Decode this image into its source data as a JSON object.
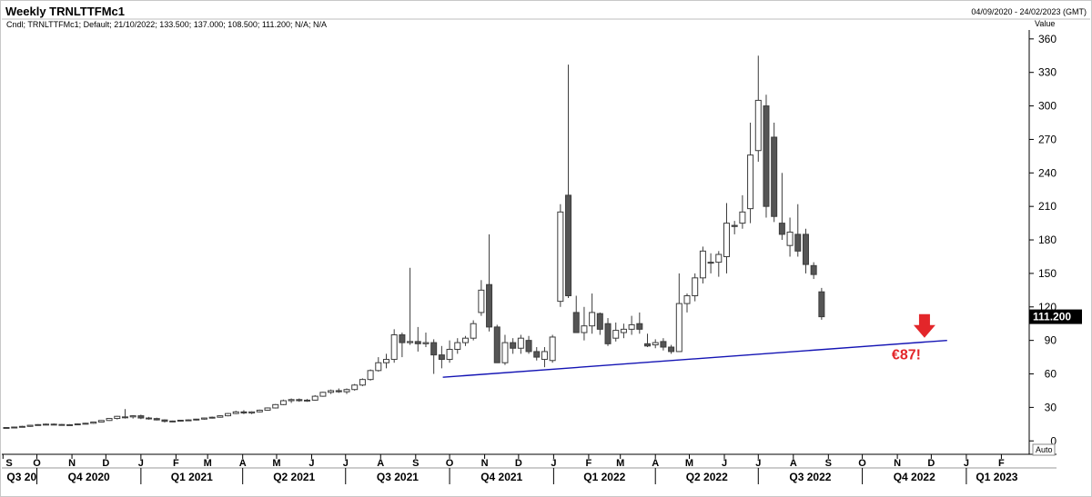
{
  "chart_data": {
    "type": "candlestick",
    "title": "Weekly TRNLTTFMc1",
    "date_range": "04/09/2020 - 24/02/2023 (GMT)",
    "info_line": "Cndl; TRNLTTFMc1; Default; 21/10/2022; 133.500; 137.000; 108.500; 111.200; N/A; N/A",
    "ylabel": "Value",
    "ylim": [
      -12,
      368
    ],
    "yticks": [
      0,
      30,
      60,
      90,
      120,
      150,
      180,
      210,
      240,
      270,
      300,
      330,
      360
    ],
    "auto_label": "Auto",
    "last_value_label": "111.200",
    "last_value": 111.2,
    "x_start": "2020-09-04",
    "x_end": "2023-02-24",
    "months": [
      {
        "label": "S",
        "date": "2020-09-01"
      },
      {
        "label": "O",
        "date": "2020-10-01"
      },
      {
        "label": "N",
        "date": "2020-11-01"
      },
      {
        "label": "D",
        "date": "2020-12-01"
      },
      {
        "label": "J",
        "date": "2021-01-01"
      },
      {
        "label": "F",
        "date": "2021-02-01"
      },
      {
        "label": "M",
        "date": "2021-03-01"
      },
      {
        "label": "A",
        "date": "2021-04-01"
      },
      {
        "label": "M",
        "date": "2021-05-01"
      },
      {
        "label": "J",
        "date": "2021-06-01"
      },
      {
        "label": "J",
        "date": "2021-07-01"
      },
      {
        "label": "A",
        "date": "2021-08-01"
      },
      {
        "label": "S",
        "date": "2021-09-01"
      },
      {
        "label": "O",
        "date": "2021-10-01"
      },
      {
        "label": "N",
        "date": "2021-11-01"
      },
      {
        "label": "D",
        "date": "2021-12-01"
      },
      {
        "label": "J",
        "date": "2022-01-01"
      },
      {
        "label": "F",
        "date": "2022-02-01"
      },
      {
        "label": "M",
        "date": "2022-03-01"
      },
      {
        "label": "A",
        "date": "2022-04-01"
      },
      {
        "label": "M",
        "date": "2022-05-01"
      },
      {
        "label": "J",
        "date": "2022-06-01"
      },
      {
        "label": "J",
        "date": "2022-07-01"
      },
      {
        "label": "A",
        "date": "2022-08-01"
      },
      {
        "label": "S",
        "date": "2022-09-01"
      },
      {
        "label": "O",
        "date": "2022-10-01"
      },
      {
        "label": "N",
        "date": "2022-11-01"
      },
      {
        "label": "D",
        "date": "2022-12-01"
      },
      {
        "label": "J",
        "date": "2023-01-01"
      },
      {
        "label": "F",
        "date": "2023-02-01"
      }
    ],
    "quarters": [
      {
        "label": "Q3 20",
        "date": "2020-09-01"
      },
      {
        "label": "Q4 2020",
        "date": "2020-10-01"
      },
      {
        "label": "Q1 2021",
        "date": "2021-01-01"
      },
      {
        "label": "Q2 2021",
        "date": "2021-04-01"
      },
      {
        "label": "Q3 2021",
        "date": "2021-07-01"
      },
      {
        "label": "Q4 2021",
        "date": "2021-10-01"
      },
      {
        "label": "Q1 2022",
        "date": "2022-01-01"
      },
      {
        "label": "Q2 2022",
        "date": "2022-04-01"
      },
      {
        "label": "Q3 2022",
        "date": "2022-07-01"
      },
      {
        "label": "Q4 2022",
        "date": "2022-10-01"
      },
      {
        "label": "Q1 2023",
        "date": "2023-01-01"
      }
    ],
    "candle_fields": [
      "open",
      "high",
      "low",
      "close"
    ],
    "candles": [
      [
        11.5,
        12.3,
        11.0,
        12.0
      ],
      [
        12.0,
        12.8,
        11.6,
        12.4
      ],
      [
        12.4,
        13.5,
        12.0,
        13.0
      ],
      [
        13.0,
        14.3,
        12.6,
        14.0
      ],
      [
        14.0,
        15.0,
        13.6,
        14.6
      ],
      [
        14.6,
        15.5,
        14.0,
        15.0
      ],
      [
        15.0,
        15.6,
        14.3,
        14.7
      ],
      [
        14.7,
        15.2,
        14.0,
        14.3
      ],
      [
        14.3,
        15.0,
        13.9,
        14.5
      ],
      [
        14.5,
        15.6,
        14.2,
        15.2
      ],
      [
        15.2,
        16.2,
        14.8,
        15.8
      ],
      [
        15.8,
        17.3,
        15.3,
        16.9
      ],
      [
        16.9,
        18.6,
        16.5,
        18.3
      ],
      [
        18.3,
        20.4,
        17.9,
        20.1
      ],
      [
        20.1,
        22.4,
        19.2,
        22.0
      ],
      [
        21.0,
        28.5,
        20.0,
        21.5
      ],
      [
        21.5,
        23.0,
        20.0,
        22.5
      ],
      [
        22.5,
        23.5,
        19.5,
        20.5
      ],
      [
        20.5,
        21.5,
        19.0,
        20.0
      ],
      [
        20.0,
        20.8,
        18.3,
        18.8
      ],
      [
        18.8,
        19.3,
        16.5,
        17.5
      ],
      [
        17.5,
        18.2,
        16.8,
        17.8
      ],
      [
        17.8,
        18.8,
        17.2,
        18.5
      ],
      [
        18.5,
        19.3,
        18.0,
        18.8
      ],
      [
        18.8,
        19.8,
        18.3,
        19.5
      ],
      [
        19.5,
        20.8,
        19.0,
        20.5
      ],
      [
        20.5,
        21.8,
        20.0,
        21.2
      ],
      [
        21.2,
        23.0,
        20.8,
        22.5
      ],
      [
        22.5,
        25.0,
        22.0,
        24.5
      ],
      [
        24.5,
        27.0,
        24.0,
        26.0
      ],
      [
        26.0,
        27.5,
        24.0,
        25.0
      ],
      [
        25.0,
        26.5,
        24.0,
        26.0
      ],
      [
        26.0,
        28.0,
        25.5,
        27.5
      ],
      [
        27.5,
        30.0,
        27.0,
        29.5
      ],
      [
        29.5,
        33.0,
        29.0,
        32.5
      ],
      [
        32.5,
        37.0,
        32.0,
        36.0
      ],
      [
        36.0,
        38.0,
        34.0,
        37.0
      ],
      [
        37.0,
        38.0,
        35.0,
        36.0
      ],
      [
        36.0,
        37.5,
        35.0,
        36.5
      ],
      [
        36.5,
        41.0,
        36.0,
        40.0
      ],
      [
        40.0,
        44.0,
        39.5,
        43.5
      ],
      [
        43.5,
        46.0,
        42.0,
        45.0
      ],
      [
        45.0,
        47.0,
        43.0,
        44.0
      ],
      [
        44.0,
        47.0,
        42.0,
        46.0
      ],
      [
        46.0,
        51.0,
        45.0,
        50.0
      ],
      [
        50.0,
        56.0,
        49.0,
        55.0
      ],
      [
        55.0,
        64.0,
        54.0,
        63.0
      ],
      [
        63.0,
        75.0,
        62.0,
        70.0
      ],
      [
        70.0,
        78.0,
        65.0,
        73.0
      ],
      [
        73.0,
        100.0,
        70.0,
        95.0
      ],
      [
        95.0,
        97.0,
        75.0,
        88.0
      ],
      [
        88.0,
        155.0,
        86.0,
        89.0
      ],
      [
        89.0,
        102.0,
        80.0,
        87.0
      ],
      [
        87.0,
        97.0,
        84.0,
        88.0
      ],
      [
        88.0,
        91.0,
        60.0,
        77.0
      ],
      [
        77.0,
        85.0,
        65.0,
        73.0
      ],
      [
        73.0,
        90.0,
        70.0,
        82.0
      ],
      [
        82.0,
        92.0,
        78.0,
        88.0
      ],
      [
        88.0,
        94.0,
        85.0,
        92.0
      ],
      [
        92.0,
        108.0,
        90.0,
        105.0
      ],
      [
        115.0,
        144.0,
        112.0,
        135.0
      ],
      [
        140.0,
        185.0,
        98.0,
        102.0
      ],
      [
        102.0,
        104.0,
        70.0,
        70.0
      ],
      [
        70.0,
        95.0,
        68.0,
        88.0
      ],
      [
        88.0,
        92.0,
        78.0,
        83.0
      ],
      [
        83.0,
        95.0,
        78.0,
        92.0
      ],
      [
        90.0,
        94.0,
        78.0,
        80.0
      ],
      [
        80.0,
        84.0,
        72.0,
        75.0
      ],
      [
        73.0,
        84.0,
        66.0,
        80.0
      ],
      [
        72.0,
        95.0,
        70.0,
        93.0
      ],
      [
        125.0,
        212.0,
        120.0,
        205.0
      ],
      [
        220.0,
        337.0,
        128.0,
        130.0
      ],
      [
        115.0,
        130.0,
        97.0,
        97.0
      ],
      [
        97.0,
        120.0,
        90.0,
        103.0
      ],
      [
        103.0,
        132.0,
        96.0,
        115.0
      ],
      [
        114.0,
        115.0,
        95.0,
        100.0
      ],
      [
        105.0,
        110.0,
        85.0,
        87.0
      ],
      [
        92.0,
        106.0,
        89.0,
        99.0
      ],
      [
        97.0,
        105.0,
        92.0,
        100.0
      ],
      [
        100.0,
        112.0,
        95.0,
        104.0
      ],
      [
        105.0,
        115.0,
        96.0,
        100.0
      ],
      [
        87.0,
        96.0,
        84.0,
        85.0
      ],
      [
        86.0,
        91.0,
        83.0,
        88.0
      ],
      [
        89.0,
        92.0,
        81.0,
        84.0
      ],
      [
        84.0,
        86.0,
        78.0,
        80.0
      ],
      [
        80.0,
        150.0,
        80.0,
        123.0
      ],
      [
        123.0,
        132.0,
        115.0,
        130.0
      ],
      [
        130.0,
        150.0,
        125.0,
        146.0
      ],
      [
        146.0,
        174.0,
        141.0,
        170.0
      ],
      [
        160.0,
        168.0,
        150.0,
        160.0
      ],
      [
        160.0,
        170.0,
        147.0,
        167.0
      ],
      [
        165.0,
        213.0,
        150.0,
        195.0
      ],
      [
        193.0,
        197.0,
        185.0,
        192.0
      ],
      [
        195.0,
        220.0,
        190.0,
        205.0
      ],
      [
        208.0,
        285.0,
        195.0,
        256.0
      ],
      [
        260.0,
        345.0,
        250.0,
        305.0
      ],
      [
        300.0,
        310.0,
        200.0,
        210.0
      ],
      [
        272.0,
        285.0,
        196.0,
        201.0
      ],
      [
        195.0,
        240.0,
        180.0,
        185.0
      ],
      [
        175.0,
        200.0,
        165.0,
        187.0
      ],
      [
        185.0,
        212.0,
        165.0,
        170.0
      ],
      [
        185.0,
        190.0,
        150.0,
        158.0
      ],
      [
        157.0,
        160.0,
        145.0,
        149.0
      ],
      [
        133.5,
        137.0,
        108.5,
        111.2
      ]
    ],
    "trendline": {
      "start": {
        "date": "2021-09-25",
        "value": 57
      },
      "end": {
        "date": "2022-12-15",
        "value": 90
      }
    },
    "annotation": {
      "text": "€87!",
      "color": "#e3262a"
    },
    "colors": {
      "up_fill": "#ffffff",
      "down_fill": "#555555",
      "candle_border": "#3c3c3c",
      "trendline": "#1414b4",
      "last_label_bg": "#000000",
      "arrow": "#e3262a"
    },
    "grid": false
  }
}
